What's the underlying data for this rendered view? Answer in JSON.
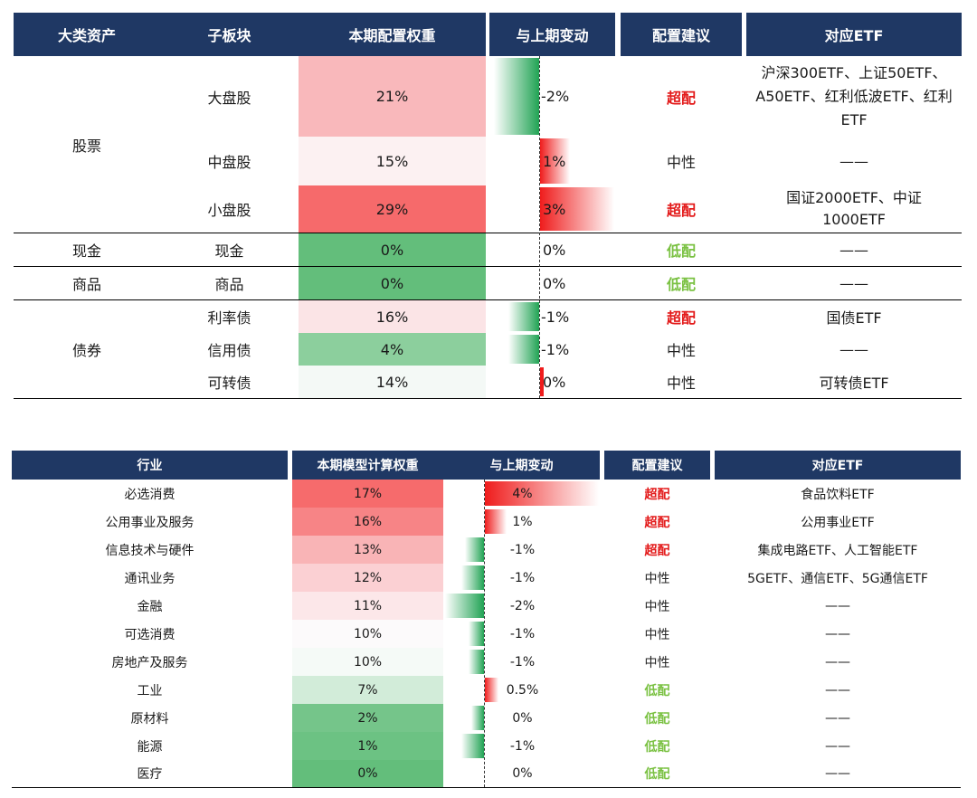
{
  "table1": {
    "headers": [
      "大类资产",
      "子板块",
      "本期配置权重",
      "与上期变动",
      "配置建议",
      "对应ETF"
    ],
    "groups": [
      "股票",
      "现金",
      "商品",
      "债券"
    ],
    "rows": [
      {
        "sub": "大盘股",
        "weight": "21%",
        "change": "-2%",
        "advice": "超配",
        "etf": "沪深300ETF、上证50ETF、A50ETF、红利低波ETF、红利ETF"
      },
      {
        "sub": "中盘股",
        "weight": "15%",
        "change": "1%",
        "advice": "中性",
        "etf": "——"
      },
      {
        "sub": "小盘股",
        "weight": "29%",
        "change": "3%",
        "advice": "超配",
        "etf": "国证2000ETF、中证1000ETF"
      },
      {
        "sub": "现金",
        "weight": "0%",
        "change": "0%",
        "advice": "低配",
        "etf": "——"
      },
      {
        "sub": "商品",
        "weight": "0%",
        "change": "0%",
        "advice": "低配",
        "etf": "——"
      },
      {
        "sub": "利率债",
        "weight": "16%",
        "change": "-1%",
        "advice": "超配",
        "etf": "国债ETF"
      },
      {
        "sub": "信用债",
        "weight": "4%",
        "change": "-1%",
        "advice": "中性",
        "etf": "——"
      },
      {
        "sub": "可转债",
        "weight": "14%",
        "change": "0%",
        "advice": "中性",
        "etf": "可转债ETF"
      }
    ]
  },
  "table2": {
    "headers": [
      "行业",
      "本期模型计算权重",
      "与上期变动",
      "配置建议",
      "对应ETF"
    ],
    "rows": [
      {
        "industry": "必选消费",
        "weight": "17%",
        "change": "4%",
        "advice": "超配",
        "etf": "食品饮料ETF"
      },
      {
        "industry": "公用事业及服务",
        "weight": "16%",
        "change": "1%",
        "advice": "超配",
        "etf": "公用事业ETF"
      },
      {
        "industry": "信息技术与硬件",
        "weight": "13%",
        "change": "-1%",
        "advice": "超配",
        "etf": "集成电路ETF、人工智能ETF"
      },
      {
        "industry": "通讯业务",
        "weight": "12%",
        "change": "-1%",
        "advice": "中性",
        "etf": "5GETF、通信ETF、5G通信ETF"
      },
      {
        "industry": "金融",
        "weight": "11%",
        "change": "-2%",
        "advice": "中性",
        "etf": "——"
      },
      {
        "industry": "可选消费",
        "weight": "10%",
        "change": "-1%",
        "advice": "中性",
        "etf": "——"
      },
      {
        "industry": "房地产及服务",
        "weight": "10%",
        "change": "-1%",
        "advice": "中性",
        "etf": "——"
      },
      {
        "industry": "工业",
        "weight": "7%",
        "change": "0.5%",
        "advice": "低配",
        "etf": "——"
      },
      {
        "industry": "原材料",
        "weight": "2%",
        "change": "0%",
        "advice": "低配",
        "etf": "——"
      },
      {
        "industry": "能源",
        "weight": "1%",
        "change": "-1%",
        "advice": "低配",
        "etf": "——"
      },
      {
        "industry": "医疗",
        "weight": "0%",
        "change": "0%",
        "advice": "低配",
        "etf": "——"
      }
    ]
  },
  "colors": {
    "header_bg": "#1f3864",
    "overweight": "#e31a1a",
    "underweight": "#7ac142",
    "bar_positive": "#ef1c1c",
    "bar_negative": "#21a354"
  }
}
